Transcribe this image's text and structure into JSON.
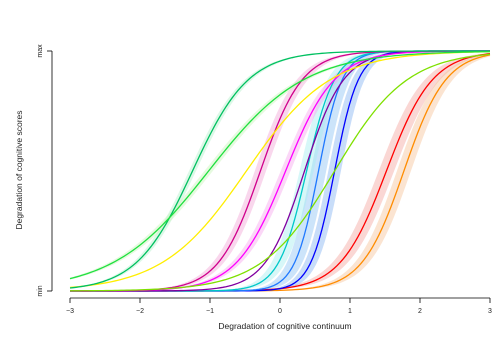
{
  "chart_data": {
    "type": "line",
    "title": "",
    "xlabel": "Degradation of cognitive continuum",
    "ylabel": "Degradation of cognitive scores",
    "xlim": [
      -3,
      3
    ],
    "x_ticks": [
      -3,
      -2,
      -1,
      0,
      1,
      2,
      3
    ],
    "x_tick_labels": [
      "−3",
      "−2",
      "−1",
      "0",
      "1",
      "2",
      "3"
    ],
    "y_ticks": [
      0,
      1
    ],
    "y_tick_labels": [
      "min",
      "max"
    ],
    "grid": false,
    "legend": "none",
    "series": [
      {
        "color": "#FF0000",
        "mid": 1.52,
        "scale": 0.33,
        "ci": 0.11,
        "band_color": "#F4A6A0"
      },
      {
        "color": "#FF8C00",
        "mid": 1.77,
        "scale": 0.3,
        "ci": 0.1,
        "band_color": "#F7C49A"
      },
      {
        "color": "#0000FF",
        "mid": 0.78,
        "scale": 0.17,
        "ci": 0.09,
        "band_color": "#86B3F2"
      },
      {
        "color": "#1F78FF",
        "mid": 0.55,
        "scale": 0.17,
        "ci": 0.11,
        "band_color": "#8FC4F5"
      },
      {
        "color": "#00C8C8",
        "mid": 0.38,
        "scale": 0.2,
        "ci": 0.1,
        "band_color": "#A7EEF0"
      },
      {
        "color": "#8000A0",
        "mid": 0.35,
        "scale": 0.28,
        "ci": 0.05
      },
      {
        "color": "#FF00FF",
        "mid": 0.08,
        "scale": 0.35,
        "ci": 0.07,
        "band_color": "#F6A6EE"
      },
      {
        "color": "#D0008C",
        "mid": -0.28,
        "scale": 0.3,
        "ci": 0.08,
        "band_color": "#F2A6D6"
      },
      {
        "color": "#FFEE00",
        "mid": -0.48,
        "scale": 0.6,
        "ci": 0.06
      },
      {
        "color": "#00C060",
        "mid": -1.25,
        "scale": 0.4,
        "ci": 0.05,
        "band_color": "#B3F0C9"
      },
      {
        "color": "#7FE000",
        "mid": 0.78,
        "scale": 0.52,
        "ci": 0.05
      },
      {
        "color": "#20E040",
        "mid": -1.02,
        "scale": 0.68,
        "ci": 0.06,
        "band_color": "#C7F5B8"
      }
    ]
  }
}
